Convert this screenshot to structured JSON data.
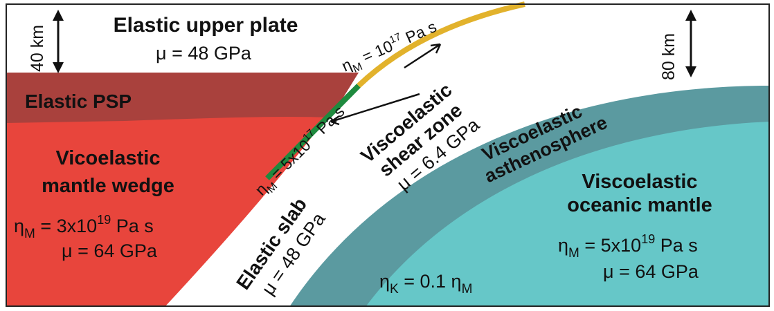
{
  "labels": {
    "upper_plate_title": "Elastic upper plate",
    "upper_plate_mu": "μ = 48 GPa",
    "thickness_left": "40 km",
    "thickness_right": "80 km",
    "psp": "Elastic PSP",
    "wedge_line1": "Vicoelastic",
    "wedge_line2": "mantle wedge",
    "wedge_eta": {
      "sym": "η",
      "sub": "M",
      "rest": " = 3x10",
      "exp": "19",
      "unit": " Pa s"
    },
    "wedge_mu": "μ = 64 GPa",
    "slab_title": "Elastic slab",
    "slab_mu": "μ = 48 GPa",
    "shear_line1": "Viscoelastic",
    "shear_line2": "shear zone",
    "shear_mu": "μ = 6.4 GPa",
    "deep_eta": {
      "sym": "η",
      "sub": "M",
      "rest": " = 5x10",
      "exp": "17",
      "unit": " Pa s"
    },
    "shallow_eta": {
      "sym": "η",
      "sub": "M",
      "rest": " = 10",
      "exp": "17",
      "unit": " Pa s"
    },
    "astheno_line1": "Viscoelastic",
    "astheno_line2": "asthenosphere",
    "oceanic_line1": "Viscoelastic",
    "oceanic_line2": "oceanic mantle",
    "oceanic_eta": {
      "sym": "η",
      "sub": "M",
      "rest": " = 5x10",
      "exp": "19",
      "unit": " Pa s"
    },
    "oceanic_mu": "μ = 64 GPa",
    "kelvin_eta": {
      "sym": "η",
      "sub": "K",
      "rest": " = 0.1 ",
      "sym2": "η",
      "sub2": "M"
    }
  },
  "colors": {
    "upper_plate": "#ffffff",
    "mantle_wedge": "#e8453c",
    "psp": "#a9413d",
    "slab": "#ffffff",
    "shear_deep": "#1e8a3e",
    "shear_shallow": "#e2b22c",
    "asthenosphere": "#5b9aa0",
    "oceanic_mantle": "#66c7c8",
    "frame": "#222222"
  }
}
